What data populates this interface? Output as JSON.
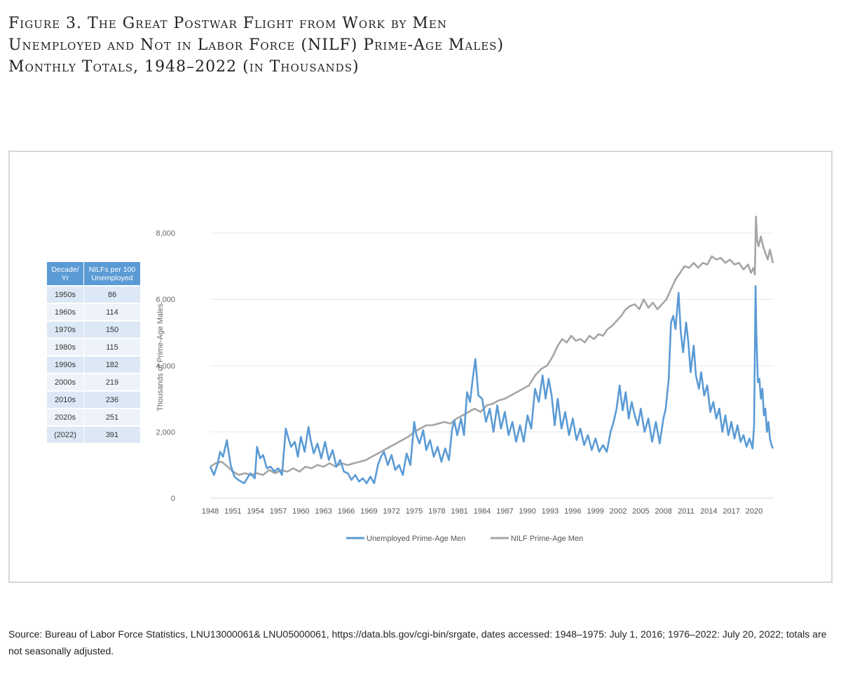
{
  "figure": {
    "title_lines": [
      "Figure 3. The Great Postwar Flight from Work by Men",
      "Unemployed and Not in Labor Force (NILF) Prime-Age Males)",
      "Monthly Totals, 1948–2022 (in Thousands)"
    ],
    "source": "Source: Bureau of Labor Force Statistics, LNU13000061& LNU05000061, https://data.bls.gov/cgi-bin/srgate, dates accessed: 1948–1975: July 1, 2016; 1976–2022: July 20, 2022; totals are not seasonally adjusted."
  },
  "table": {
    "headers": [
      "Decade/ Yr",
      "NILFs per 100 Unemployed"
    ],
    "rows": [
      [
        "1950s",
        "86"
      ],
      [
        "1960s",
        "114"
      ],
      [
        "1970s",
        "150"
      ],
      [
        "1980s",
        "115"
      ],
      [
        "1990s",
        "182"
      ],
      [
        "2000s",
        "219"
      ],
      [
        "2010s",
        "236"
      ],
      [
        "2020s",
        "251"
      ],
      [
        "(2022)",
        "391"
      ]
    ]
  },
  "chart_data": {
    "type": "line",
    "ylabel": "Thousands of Prime-Age Males",
    "ylim": [
      0,
      8500
    ],
    "yticks": [
      0,
      2000,
      4000,
      6000,
      8000
    ],
    "ytick_labels": [
      "0",
      "2,000",
      "4,000",
      "6,000",
      "8,000"
    ],
    "xlim": [
      1948,
      2022.6
    ],
    "xticks": [
      1948,
      1951,
      1954,
      1957,
      1960,
      1963,
      1966,
      1969,
      1972,
      1975,
      1978,
      1981,
      1984,
      1987,
      1990,
      1993,
      1996,
      1999,
      2002,
      2005,
      2008,
      2011,
      2014,
      2017,
      2020
    ],
    "grid": "horizontal",
    "legend_position": "bottom",
    "series": [
      {
        "name": "Unemployed Prime-Age Men",
        "color": "#5b9bd5",
        "x": [
          1948.0,
          1948.5,
          1949.0,
          1949.3,
          1949.7,
          1950.2,
          1950.7,
          1951.2,
          1951.7,
          1952.5,
          1953.3,
          1953.9,
          1954.2,
          1954.6,
          1955.0,
          1955.5,
          1956.0,
          1956.5,
          1957.0,
          1957.5,
          1958.0,
          1958.3,
          1958.7,
          1959.2,
          1959.6,
          1960.0,
          1960.5,
          1961.0,
          1961.3,
          1961.7,
          1962.2,
          1962.7,
          1963.2,
          1963.7,
          1964.2,
          1964.7,
          1965.2,
          1965.7,
          1966.2,
          1966.7,
          1967.2,
          1967.7,
          1968.2,
          1968.7,
          1969.2,
          1969.7,
          1970.2,
          1970.6,
          1971.0,
          1971.5,
          1972.0,
          1972.5,
          1973.0,
          1973.5,
          1974.0,
          1974.5,
          1975.0,
          1975.3,
          1975.7,
          1976.2,
          1976.6,
          1977.1,
          1977.6,
          1978.1,
          1978.6,
          1979.1,
          1979.6,
          1980.0,
          1980.3,
          1980.7,
          1981.2,
          1981.6,
          1982.0,
          1982.4,
          1982.8,
          1983.1,
          1983.5,
          1984.0,
          1984.5,
          1985.0,
          1985.5,
          1986.0,
          1986.5,
          1987.0,
          1987.5,
          1988.0,
          1988.5,
          1989.0,
          1989.5,
          1990.0,
          1990.5,
          1991.0,
          1991.5,
          1992.0,
          1992.4,
          1992.8,
          1993.2,
          1993.6,
          1994.0,
          1994.5,
          1995.0,
          1995.5,
          1996.0,
          1996.5,
          1997.0,
          1997.5,
          1998.0,
          1998.5,
          1999.0,
          1999.5,
          2000.0,
          2000.5,
          2001.0,
          2001.4,
          2001.8,
          2002.2,
          2002.6,
          2003.0,
          2003.4,
          2003.8,
          2004.2,
          2004.6,
          2005.0,
          2005.5,
          2006.0,
          2006.5,
          2007.0,
          2007.5,
          2008.0,
          2008.3,
          2008.7,
          2009.0,
          2009.3,
          2009.6,
          2010.0,
          2010.3,
          2010.6,
          2011.0,
          2011.3,
          2011.6,
          2012.0,
          2012.3,
          2012.7,
          2013.0,
          2013.4,
          2013.8,
          2014.2,
          2014.6,
          2015.0,
          2015.4,
          2015.8,
          2016.2,
          2016.6,
          2017.0,
          2017.4,
          2017.8,
          2018.2,
          2018.6,
          2019.0,
          2019.4,
          2019.8,
          2020.0,
          2020.2,
          2020.3,
          2020.5,
          2020.7,
          2020.9,
          2021.1,
          2021.3,
          2021.5,
          2021.7,
          2021.9,
          2022.1,
          2022.3,
          2022.5
        ],
        "values": [
          950,
          700,
          1050,
          1400,
          1250,
          1750,
          1000,
          650,
          550,
          450,
          750,
          600,
          1550,
          1200,
          1300,
          900,
          950,
          800,
          900,
          700,
          2100,
          1850,
          1550,
          1700,
          1250,
          1850,
          1400,
          2150,
          1750,
          1350,
          1650,
          1200,
          1700,
          1150,
          1450,
          950,
          1150,
          800,
          750,
          550,
          700,
          500,
          600,
          450,
          650,
          450,
          1000,
          1250,
          1400,
          1000,
          1300,
          850,
          1000,
          700,
          1350,
          1000,
          2300,
          1900,
          1650,
          2050,
          1450,
          1750,
          1250,
          1550,
          1100,
          1500,
          1150,
          2050,
          2350,
          1900,
          2400,
          1900,
          3200,
          2900,
          3700,
          4200,
          3100,
          3000,
          2300,
          2700,
          2000,
          2800,
          2100,
          2600,
          1900,
          2300,
          1700,
          2200,
          1700,
          2500,
          2100,
          3300,
          2900,
          3700,
          3000,
          3600,
          3100,
          2200,
          3000,
          2100,
          2600,
          1900,
          2400,
          1750,
          2100,
          1600,
          1900,
          1450,
          1800,
          1400,
          1600,
          1400,
          2000,
          2300,
          2700,
          3400,
          2650,
          3200,
          2400,
          2900,
          2500,
          2200,
          2700,
          2000,
          2400,
          1700,
          2300,
          1650,
          2400,
          2700,
          3600,
          5300,
          5500,
          5100,
          6200,
          5000,
          4400,
          5300,
          4700,
          3800,
          4600,
          3700,
          3300,
          3800,
          3100,
          3400,
          2600,
          2900,
          2400,
          2700,
          2000,
          2500,
          1900,
          2300,
          1800,
          2200,
          1700,
          1900,
          1550,
          1800,
          1500,
          2200,
          6400,
          5000,
          3500,
          3600,
          3000,
          3300,
          2500,
          2700,
          2000,
          2300,
          1800,
          1600,
          1500
        ]
      },
      {
        "name": "NILF Prime-Age Men",
        "color": "#a5a5a5",
        "x": [
          1948.0,
          1948.7,
          1949.5,
          1950.3,
          1951.0,
          1951.8,
          1952.6,
          1953.4,
          1954.2,
          1955.0,
          1955.8,
          1956.6,
          1957.4,
          1958.2,
          1959.0,
          1959.8,
          1960.6,
          1961.4,
          1962.2,
          1963.0,
          1963.8,
          1964.6,
          1965.4,
          1966.2,
          1967.0,
          1967.8,
          1968.6,
          1969.4,
          1970.2,
          1971.0,
          1971.8,
          1972.6,
          1973.4,
          1974.2,
          1975.0,
          1975.8,
          1976.6,
          1977.4,
          1978.2,
          1979.0,
          1979.8,
          1980.6,
          1981.4,
          1982.2,
          1983.0,
          1983.8,
          1984.6,
          1985.4,
          1986.2,
          1987.0,
          1987.8,
          1988.6,
          1989.4,
          1990.2,
          1991.0,
          1991.8,
          1992.6,
          1993.4,
          1994.0,
          1994.6,
          1995.2,
          1995.8,
          1996.4,
          1997.0,
          1997.6,
          1998.2,
          1998.8,
          1999.4,
          2000.0,
          2000.6,
          2001.2,
          2001.8,
          2002.4,
          2003.0,
          2003.6,
          2004.2,
          2004.8,
          2005.4,
          2006.0,
          2006.6,
          2007.2,
          2007.8,
          2008.4,
          2009.0,
          2009.6,
          2010.2,
          2010.8,
          2011.4,
          2012.0,
          2012.6,
          2013.2,
          2013.8,
          2014.4,
          2015.0,
          2015.6,
          2016.2,
          2016.8,
          2017.4,
          2018.0,
          2018.6,
          2019.2,
          2019.6,
          2019.9,
          2020.1,
          2020.25,
          2020.4,
          2020.6,
          2020.9,
          2021.2,
          2021.5,
          2021.8,
          2022.1,
          2022.4,
          2022.5
        ],
        "values": [
          950,
          1050,
          1100,
          950,
          800,
          700,
          750,
          700,
          750,
          700,
          850,
          750,
          850,
          800,
          900,
          800,
          950,
          900,
          1000,
          950,
          1050,
          950,
          1050,
          1000,
          1050,
          1100,
          1150,
          1250,
          1350,
          1450,
          1550,
          1650,
          1750,
          1850,
          2000,
          2100,
          2200,
          2200,
          2250,
          2300,
          2250,
          2400,
          2500,
          2600,
          2700,
          2600,
          2800,
          2850,
          2950,
          3000,
          3100,
          3200,
          3300,
          3400,
          3700,
          3900,
          4000,
          4300,
          4600,
          4800,
          4700,
          4900,
          4750,
          4800,
          4700,
          4900,
          4800,
          4950,
          4900,
          5100,
          5200,
          5350,
          5500,
          5700,
          5800,
          5850,
          5700,
          6000,
          5750,
          5900,
          5700,
          5850,
          6000,
          6300,
          6600,
          6800,
          7000,
          6950,
          7100,
          6950,
          7100,
          7050,
          7300,
          7200,
          7250,
          7100,
          7200,
          7050,
          7100,
          6900,
          7050,
          6800,
          6950,
          6750,
          8500,
          7800,
          7600,
          7900,
          7600,
          7400,
          7200,
          7500,
          7200,
          7100
        ]
      }
    ]
  }
}
